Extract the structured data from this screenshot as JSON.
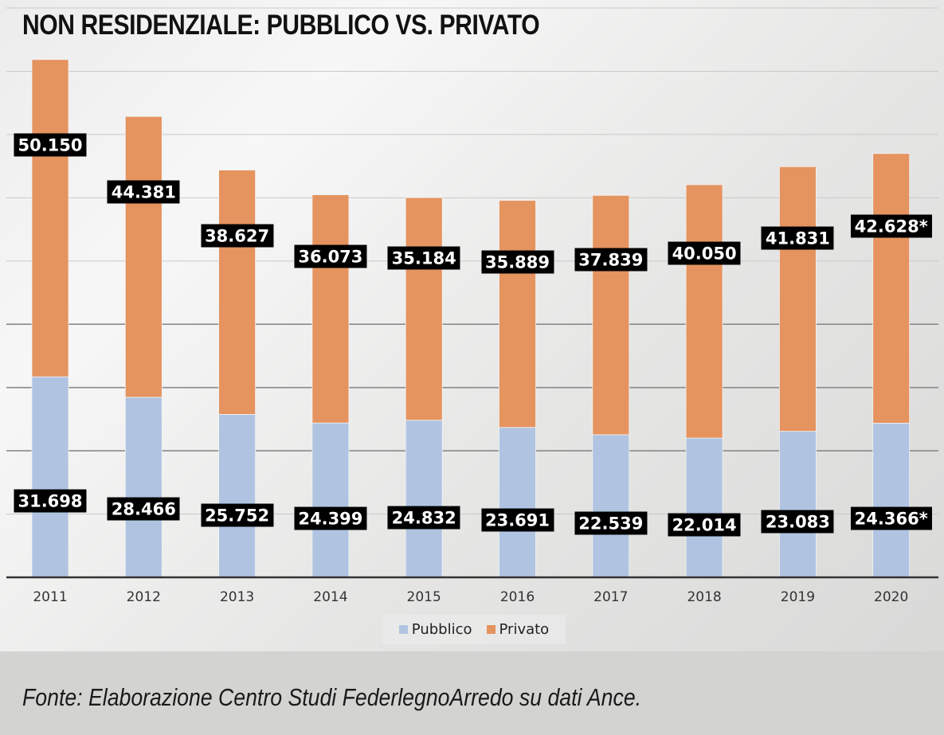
{
  "chart_data": {
    "type": "bar",
    "stacked": true,
    "title": "NON RESIDENZIALE: PUBBLICO VS. PRIVATO",
    "xlabel": "",
    "ylabel": "",
    "categories": [
      "2011",
      "2012",
      "2013",
      "2014",
      "2015",
      "2016",
      "2017",
      "2018",
      "2019",
      "2020"
    ],
    "series": [
      {
        "name": "Pubblico",
        "color": "#b0c4e2",
        "values": [
          31698,
          28466,
          25752,
          24399,
          24832,
          23691,
          22539,
          22014,
          23083,
          24366
        ],
        "labels": [
          "31.698",
          "28.466",
          "25.752",
          "24.399",
          "24.832",
          "23.691",
          "22.539",
          "22.014",
          "23.083",
          "24.366*"
        ]
      },
      {
        "name": "Privato",
        "color": "#e5935f",
        "values": [
          50150,
          44381,
          38627,
          36073,
          35184,
          35889,
          37839,
          40050,
          41831,
          42628
        ],
        "labels": [
          "50.150",
          "44.381",
          "38.627",
          "36.073",
          "35.184",
          "35.889",
          "37.839",
          "40.050",
          "41.831",
          "42.628*"
        ]
      }
    ],
    "ylim": [
      0,
      90000
    ],
    "ygrid_step": 10000,
    "grid": true,
    "y_tick_labels_visible": false,
    "legend": [
      "Pubblico",
      "Privato"
    ],
    "legend_position": "bottom"
  },
  "source": "Fonte: Elaborazione Centro Studi FederlegnoArredo su dati Ance."
}
